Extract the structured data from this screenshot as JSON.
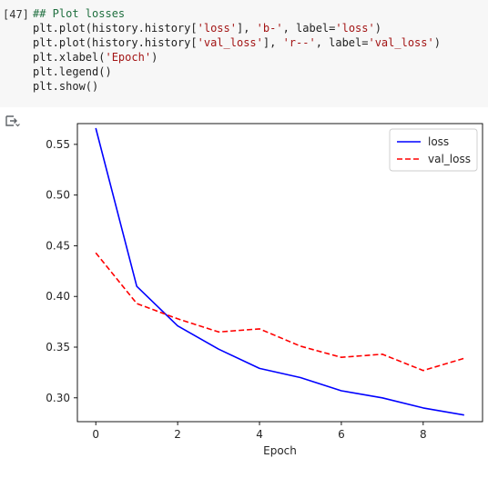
{
  "cell": {
    "exec_count": "[47]",
    "code_lines": [
      {
        "segments": [
          {
            "t": "## Plot losses",
            "c": "comment"
          }
        ]
      },
      {
        "segments": [
          {
            "t": "plt.plot(history.history[",
            "c": ""
          },
          {
            "t": "'loss'",
            "c": "str"
          },
          {
            "t": "], ",
            "c": ""
          },
          {
            "t": "'b-'",
            "c": "str"
          },
          {
            "t": ", label=",
            "c": ""
          },
          {
            "t": "'loss'",
            "c": "str"
          },
          {
            "t": ")",
            "c": ""
          }
        ]
      },
      {
        "segments": [
          {
            "t": "plt.plot(history.history[",
            "c": ""
          },
          {
            "t": "'val_loss'",
            "c": "str"
          },
          {
            "t": "], ",
            "c": ""
          },
          {
            "t": "'r--'",
            "c": "str"
          },
          {
            "t": ", label=",
            "c": ""
          },
          {
            "t": "'val_loss'",
            "c": "str"
          },
          {
            "t": ")",
            "c": ""
          }
        ]
      },
      {
        "segments": [
          {
            "t": "plt.xlabel(",
            "c": ""
          },
          {
            "t": "'Epoch'",
            "c": "str"
          },
          {
            "t": ")",
            "c": ""
          }
        ]
      },
      {
        "segments": [
          {
            "t": "plt.legend()",
            "c": ""
          }
        ]
      },
      {
        "segments": [
          {
            "t": "plt.show()",
            "c": ""
          }
        ]
      }
    ]
  },
  "output": {
    "icon": "output-toggle-icon"
  },
  "chart_data": {
    "type": "line",
    "title": "",
    "xlabel": "Epoch",
    "ylabel": "",
    "x": [
      0,
      1,
      2,
      3,
      4,
      5,
      6,
      7,
      8,
      9
    ],
    "xlim": [
      -0.45,
      9.45
    ],
    "ylim": [
      0.2765,
      0.5705
    ],
    "xticks": [
      0,
      2,
      4,
      6,
      8
    ],
    "yticks": [
      0.3,
      0.35,
      0.4,
      0.45,
      0.5,
      0.55
    ],
    "ytick_labels": [
      "0.30",
      "0.35",
      "0.40",
      "0.45",
      "0.50",
      "0.55"
    ],
    "grid": false,
    "legend_position": "top-right",
    "series": [
      {
        "name": "loss",
        "color": "#0000ff",
        "style": "solid",
        "values": [
          0.566,
          0.41,
          0.371,
          0.348,
          0.329,
          0.32,
          0.307,
          0.3,
          0.29,
          0.283
        ]
      },
      {
        "name": "val_loss",
        "color": "#ff0000",
        "style": "dashed",
        "values": [
          0.443,
          0.393,
          0.378,
          0.365,
          0.368,
          0.351,
          0.34,
          0.343,
          0.327,
          0.339
        ]
      }
    ]
  }
}
